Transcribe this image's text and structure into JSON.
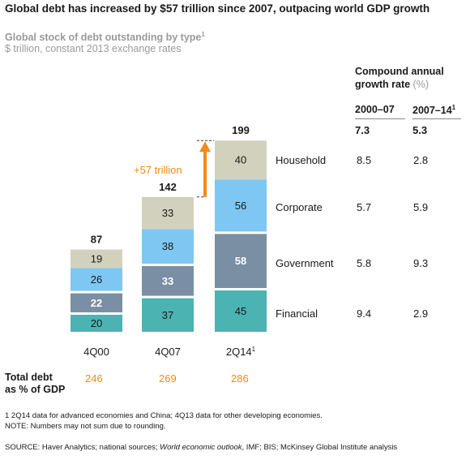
{
  "title": "Global debt has increased by $57 trillion since 2007, outpacing world GDP growth",
  "subtitle": "Global stock of debt outstanding by type",
  "subtitle_footnote_mark": "1",
  "units": "$ trillion, constant 2013 exchange rates",
  "increase_annotation": "+57 trillion",
  "colors": {
    "financial": "#4cb3b3",
    "government": "#7a8fa3",
    "corporate": "#7ec7f2",
    "household": "#d2d1be",
    "accent": "#f28a18"
  },
  "chart_data": {
    "type": "bar",
    "stacked": true,
    "categories": [
      "4Q00",
      "4Q07",
      "2Q14"
    ],
    "category_footnotes": [
      "",
      "",
      "1"
    ],
    "series": [
      {
        "name": "Financial",
        "values": [
          20,
          37,
          45
        ],
        "cagr_2000_07": "9.4",
        "cagr_2007_14": "2.9"
      },
      {
        "name": "Government",
        "values": [
          22,
          33,
          58
        ],
        "cagr_2000_07": "5.8",
        "cagr_2007_14": "9.3"
      },
      {
        "name": "Corporate",
        "values": [
          26,
          38,
          56
        ],
        "cagr_2000_07": "5.7",
        "cagr_2007_14": "5.9"
      },
      {
        "name": "Household",
        "values": [
          19,
          33,
          40
        ],
        "cagr_2000_07": "8.5",
        "cagr_2007_14": "2.8"
      }
    ],
    "totals": [
      87,
      142,
      199
    ],
    "debt_pct_gdp": [
      246,
      269,
      286
    ]
  },
  "cagr": {
    "heading_line1": "Compound annual",
    "heading_line2": "growth rate",
    "heading_unit": "(%)",
    "col1": "2000–07",
    "col2": "2007–14",
    "col2_footnote_mark": "1",
    "total_col1": "7.3",
    "total_col2": "5.3"
  },
  "total_debt_label_line1": "Total debt",
  "total_debt_label_line2": "as % of GDP",
  "footnote1": "1  2Q14 data for advanced economies and China; 4Q13 data for other developing economies.",
  "note": "NOTE: Numbers may not sum due to rounding.",
  "source": {
    "prefix": "SOURCE:  Haver Analytics; national sources; ",
    "italic": "World economic outlook",
    "suffix": ", IMF; BIS; McKinsey Global Institute analysis"
  }
}
